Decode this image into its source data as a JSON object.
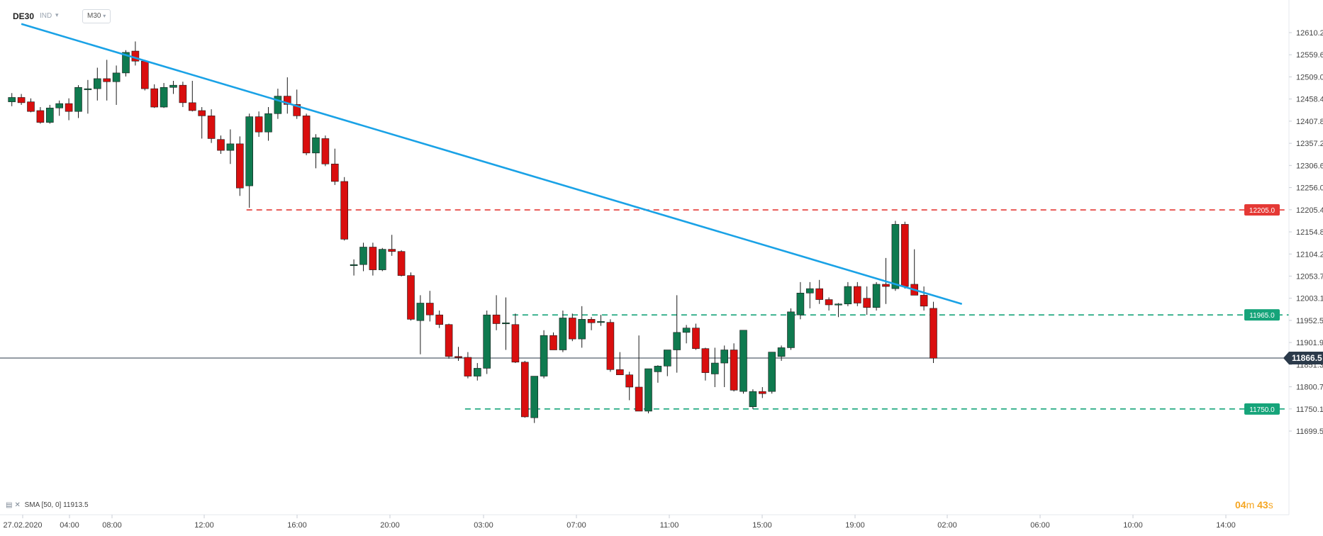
{
  "header": {
    "symbol": "DE30",
    "type_label": "IND",
    "timeframe": "M30"
  },
  "indicator_legend": {
    "text": "SMA [50, 0] 11913.5"
  },
  "countdown": {
    "minutes": "04",
    "minutes_unit": "m",
    "seconds": "43",
    "seconds_unit": "s"
  },
  "colors": {
    "bull": "#0f7a4f",
    "bear": "#d90e0e",
    "trendline": "#1aa2e6",
    "resistance": "#e53935",
    "support": "#16a47a",
    "price_line": "#2b3a4a",
    "countdown": "#f5a623"
  },
  "chart_data": {
    "type": "candlestick",
    "instrument": "DE30",
    "timeframe": "M30",
    "y_axis": {
      "ticks": [
        "12610.2",
        "12559.6",
        "12509.0",
        "12458.4",
        "12407.8",
        "12357.2",
        "12306.6",
        "12256.0",
        "12205.4",
        "12154.8",
        "12104.2",
        "12053.7",
        "12003.1",
        "11952.5",
        "11901.9",
        "11851.3",
        "11800.7",
        "11750.1",
        "11699.5"
      ]
    },
    "x_axis": {
      "ticks": [
        "27.02.2020",
        "04:00",
        "08:00",
        "12:00",
        "16:00",
        "20:00",
        "03:00",
        "07:00",
        "11:00",
        "15:00",
        "19:00",
        "02:00",
        "06:00",
        "10:00",
        "14:00"
      ]
    },
    "price_tags": [
      {
        "label": "12205.0",
        "value": 12205.0,
        "kind": "resistance"
      },
      {
        "label": "11965.0",
        "value": 11965.0,
        "kind": "support"
      },
      {
        "label": "11750.0",
        "value": 11750.0,
        "kind": "support"
      },
      {
        "label": "11866.5",
        "value": 11866.5,
        "kind": "current"
      }
    ],
    "trendline": {
      "from": {
        "bar": 1,
        "price": 12630
      },
      "to": {
        "bar": 100,
        "price": 11990
      }
    },
    "levels": [
      {
        "value": 12205.0,
        "from_bar": 25,
        "style": "dashed",
        "color": "resistance"
      },
      {
        "value": 11965.0,
        "from_bar": 53,
        "style": "dashed",
        "color": "support"
      },
      {
        "value": 11750.0,
        "from_bar": 48,
        "style": "dashed",
        "color": "support"
      }
    ],
    "current_price": 11866.5,
    "candles": [
      {
        "o": 12452,
        "h": 12472,
        "l": 12442,
        "c": 12462
      },
      {
        "o": 12462,
        "h": 12470,
        "l": 12445,
        "c": 12450
      },
      {
        "o": 12452,
        "h": 12460,
        "l": 12428,
        "c": 12430
      },
      {
        "o": 12432,
        "h": 12440,
        "l": 12402,
        "c": 12405
      },
      {
        "o": 12405,
        "h": 12445,
        "l": 12402,
        "c": 12438
      },
      {
        "o": 12438,
        "h": 12455,
        "l": 12420,
        "c": 12448
      },
      {
        "o": 12448,
        "h": 12460,
        "l": 12410,
        "c": 12430
      },
      {
        "o": 12430,
        "h": 12490,
        "l": 12415,
        "c": 12485
      },
      {
        "o": 12482,
        "h": 12502,
        "l": 12425,
        "c": 12482
      },
      {
        "o": 12482,
        "h": 12530,
        "l": 12455,
        "c": 12505
      },
      {
        "o": 12505,
        "h": 12548,
        "l": 12455,
        "c": 12498
      },
      {
        "o": 12498,
        "h": 12535,
        "l": 12445,
        "c": 12518
      },
      {
        "o": 12518,
        "h": 12570,
        "l": 12510,
        "c": 12565
      },
      {
        "o": 12568,
        "h": 12590,
        "l": 12535,
        "c": 12545
      },
      {
        "o": 12545,
        "h": 12548,
        "l": 12478,
        "c": 12482
      },
      {
        "o": 12482,
        "h": 12492,
        "l": 12438,
        "c": 12440
      },
      {
        "o": 12440,
        "h": 12495,
        "l": 12438,
        "c": 12485
      },
      {
        "o": 12485,
        "h": 12500,
        "l": 12470,
        "c": 12490
      },
      {
        "o": 12490,
        "h": 12498,
        "l": 12440,
        "c": 12450
      },
      {
        "o": 12450,
        "h": 12500,
        "l": 12430,
        "c": 12432
      },
      {
        "o": 12432,
        "h": 12440,
        "l": 12368,
        "c": 12420
      },
      {
        "o": 12420,
        "h": 12435,
        "l": 12358,
        "c": 12368
      },
      {
        "o": 12366,
        "h": 12375,
        "l": 12333,
        "c": 12341
      },
      {
        "o": 12341,
        "h": 12389,
        "l": 12310,
        "c": 12356
      },
      {
        "o": 12356,
        "h": 12373,
        "l": 12237,
        "c": 12255
      },
      {
        "o": 12260,
        "h": 12425,
        "l": 12210,
        "c": 12418
      },
      {
        "o": 12418,
        "h": 12430,
        "l": 12372,
        "c": 12383
      },
      {
        "o": 12383,
        "h": 12440,
        "l": 12363,
        "c": 12425
      },
      {
        "o": 12425,
        "h": 12482,
        "l": 12413,
        "c": 12465
      },
      {
        "o": 12465,
        "h": 12508,
        "l": 12425,
        "c": 12446
      },
      {
        "o": 12446,
        "h": 12480,
        "l": 12413,
        "c": 12420
      },
      {
        "o": 12420,
        "h": 12425,
        "l": 12330,
        "c": 12335
      },
      {
        "o": 12335,
        "h": 12378,
        "l": 12300,
        "c": 12370
      },
      {
        "o": 12368,
        "h": 12375,
        "l": 12305,
        "c": 12310
      },
      {
        "o": 12310,
        "h": 12345,
        "l": 12262,
        "c": 12270
      },
      {
        "o": 12270,
        "h": 12280,
        "l": 12135,
        "c": 12138
      },
      {
        "o": 12080,
        "h": 12092,
        "l": 12055,
        "c": 12080
      },
      {
        "o": 12080,
        "h": 12130,
        "l": 12065,
        "c": 12120
      },
      {
        "o": 12120,
        "h": 12130,
        "l": 12055,
        "c": 12068
      },
      {
        "o": 12068,
        "h": 12118,
        "l": 12065,
        "c": 12115
      },
      {
        "o": 12115,
        "h": 12148,
        "l": 12100,
        "c": 12110
      },
      {
        "o": 12110,
        "h": 12113,
        "l": 12053,
        "c": 12055
      },
      {
        "o": 12055,
        "h": 12062,
        "l": 11952,
        "c": 11955
      },
      {
        "o": 11952,
        "h": 12010,
        "l": 11875,
        "c": 11992
      },
      {
        "o": 11992,
        "h": 12020,
        "l": 11950,
        "c": 11965
      },
      {
        "o": 11965,
        "h": 11975,
        "l": 11935,
        "c": 11943
      },
      {
        "o": 11943,
        "h": 11945,
        "l": 11865,
        "c": 11870
      },
      {
        "o": 11870,
        "h": 11892,
        "l": 11860,
        "c": 11868
      },
      {
        "o": 11868,
        "h": 11880,
        "l": 11820,
        "c": 11825
      },
      {
        "o": 11825,
        "h": 11855,
        "l": 11815,
        "c": 11843
      },
      {
        "o": 11843,
        "h": 11975,
        "l": 11830,
        "c": 11965
      },
      {
        "o": 11965,
        "h": 12010,
        "l": 11930,
        "c": 11945
      },
      {
        "o": 11945,
        "h": 12005,
        "l": 11885,
        "c": 11947
      },
      {
        "o": 11943,
        "h": 11968,
        "l": 11855,
        "c": 11857
      },
      {
        "o": 11857,
        "h": 11860,
        "l": 11730,
        "c": 11732
      },
      {
        "o": 11730,
        "h": 11822,
        "l": 11718,
        "c": 11825
      },
      {
        "o": 11825,
        "h": 11930,
        "l": 11820,
        "c": 11918
      },
      {
        "o": 11918,
        "h": 11925,
        "l": 11885,
        "c": 11885
      },
      {
        "o": 11885,
        "h": 11975,
        "l": 11880,
        "c": 11958
      },
      {
        "o": 11958,
        "h": 11968,
        "l": 11905,
        "c": 11910
      },
      {
        "o": 11910,
        "h": 11985,
        "l": 11890,
        "c": 11955
      },
      {
        "o": 11955,
        "h": 11960,
        "l": 11930,
        "c": 11947
      },
      {
        "o": 11950,
        "h": 11965,
        "l": 11940,
        "c": 11950
      },
      {
        "o": 11948,
        "h": 11955,
        "l": 11835,
        "c": 11840
      },
      {
        "o": 11840,
        "h": 11880,
        "l": 11830,
        "c": 11828
      },
      {
        "o": 11828,
        "h": 11835,
        "l": 11770,
        "c": 11800
      },
      {
        "o": 11800,
        "h": 11918,
        "l": 11745,
        "c": 11745
      },
      {
        "o": 11745,
        "h": 11840,
        "l": 11740,
        "c": 11842
      },
      {
        "o": 11835,
        "h": 11850,
        "l": 11810,
        "c": 11848
      },
      {
        "o": 11848,
        "h": 11880,
        "l": 11825,
        "c": 11885
      },
      {
        "o": 11885,
        "h": 12010,
        "l": 11833,
        "c": 11925
      },
      {
        "o": 11925,
        "h": 11942,
        "l": 11900,
        "c": 11935
      },
      {
        "o": 11935,
        "h": 11945,
        "l": 11885,
        "c": 11888
      },
      {
        "o": 11888,
        "h": 11890,
        "l": 11815,
        "c": 11833
      },
      {
        "o": 11830,
        "h": 11890,
        "l": 11800,
        "c": 11855
      },
      {
        "o": 11855,
        "h": 11895,
        "l": 11800,
        "c": 11885
      },
      {
        "o": 11885,
        "h": 11900,
        "l": 11790,
        "c": 11793
      },
      {
        "o": 11790,
        "h": 11930,
        "l": 11785,
        "c": 11930
      },
      {
        "o": 11755,
        "h": 11795,
        "l": 11750,
        "c": 11790
      },
      {
        "o": 11790,
        "h": 11800,
        "l": 11775,
        "c": 11785
      },
      {
        "o": 11790,
        "h": 11880,
        "l": 11785,
        "c": 11880
      },
      {
        "o": 11870,
        "h": 11895,
        "l": 11860,
        "c": 11890
      },
      {
        "o": 11890,
        "h": 11980,
        "l": 11885,
        "c": 11972
      },
      {
        "o": 11965,
        "h": 12040,
        "l": 11955,
        "c": 12015
      },
      {
        "o": 12015,
        "h": 12040,
        "l": 11980,
        "c": 12025
      },
      {
        "o": 12025,
        "h": 12045,
        "l": 11990,
        "c": 12000
      },
      {
        "o": 12000,
        "h": 12005,
        "l": 11975,
        "c": 11988
      },
      {
        "o": 11988,
        "h": 11992,
        "l": 11960,
        "c": 11990
      },
      {
        "o": 11990,
        "h": 12040,
        "l": 11985,
        "c": 12030
      },
      {
        "o": 12030,
        "h": 12040,
        "l": 11985,
        "c": 11992
      },
      {
        "o": 12003,
        "h": 12030,
        "l": 11965,
        "c": 11982
      },
      {
        "o": 11982,
        "h": 12040,
        "l": 11975,
        "c": 12035
      },
      {
        "o": 12035,
        "h": 12095,
        "l": 11990,
        "c": 12030
      },
      {
        "o": 12025,
        "h": 12180,
        "l": 12020,
        "c": 12172
      },
      {
        "o": 12172,
        "h": 12178,
        "l": 12025,
        "c": 12030
      },
      {
        "o": 12035,
        "h": 12115,
        "l": 12012,
        "c": 12010
      },
      {
        "o": 12010,
        "h": 12030,
        "l": 11975,
        "c": 11985
      },
      {
        "o": 11980,
        "h": 11995,
        "l": 11855,
        "c": 11866
      }
    ]
  }
}
